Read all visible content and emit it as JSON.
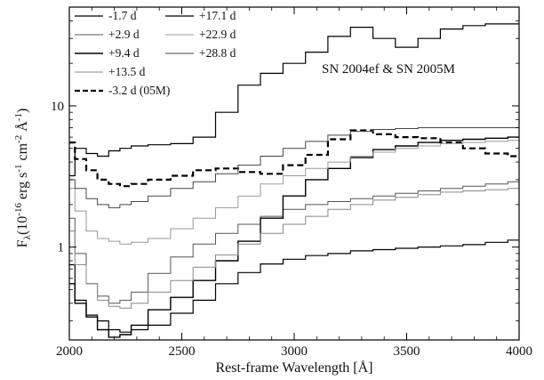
{
  "chart_data": {
    "type": "line",
    "title": "",
    "annotation": "SN 2004ef & SN 2005M",
    "xlabel": "Rest-frame Wavelength [Å]",
    "ylabel": "F_λ (10^-16 erg s^-1 cm^-2 Å^-1)",
    "ylabel_parts": {
      "F": "F",
      "lambda_sub": "λ",
      "unit": "(10",
      "exp1": "-16",
      "erg": " erg s",
      "exp2": "-1",
      "cm": " cm",
      "exp3": "-2",
      "ang": " Å",
      "exp4": "-1",
      "close": ")"
    },
    "xlim": [
      2000,
      4000
    ],
    "ylim": [
      0.22,
      50
    ],
    "yscale": "log",
    "grid": false,
    "legend_position": "top-left",
    "x_ticks": [
      "2000",
      "2500",
      "3000",
      "3500",
      "4000"
    ],
    "x_tick_values": [
      2000,
      2500,
      3000,
      3500,
      4000
    ],
    "y_ticks": [
      "1",
      "10"
    ],
    "y_tick_values": [
      1,
      10
    ],
    "series": [
      {
        "name": "-1.7 d",
        "color": "#000000",
        "style": "solid",
        "width": 1.2,
        "x": [
          2000,
          2050,
          2100,
          2150,
          2200,
          2250,
          2300,
          2400,
          2500,
          2600,
          2700,
          2800,
          2900,
          3000,
          3100,
          3200,
          3300,
          3400,
          3500,
          3600,
          3700,
          3800,
          3900,
          4000
        ],
        "y": [
          0.75,
          0.42,
          0.33,
          0.3,
          0.26,
          0.25,
          0.26,
          0.28,
          0.34,
          0.42,
          0.55,
          0.66,
          0.76,
          0.82,
          0.87,
          0.9,
          0.94,
          0.96,
          0.98,
          1.0,
          1.02,
          1.04,
          1.08,
          1.12
        ]
      },
      {
        "name": "+2.9 d",
        "color": "#555555",
        "style": "solid",
        "width": 1.0,
        "x": [
          2000,
          2050,
          2100,
          2150,
          2200,
          2250,
          2300,
          2400,
          2500,
          2600,
          2700,
          2800,
          2900,
          3000,
          3100,
          3200,
          3300,
          3400,
          3500,
          3600,
          3700,
          3800,
          3900,
          4000
        ],
        "y": [
          1.6,
          0.9,
          0.55,
          0.45,
          0.4,
          0.42,
          0.48,
          0.65,
          0.85,
          1.05,
          1.25,
          1.45,
          1.65,
          1.85,
          2.0,
          2.1,
          2.2,
          2.3,
          2.4,
          2.5,
          2.6,
          2.7,
          2.8,
          2.9
        ]
      },
      {
        "name": "+9.4 d",
        "color": "#000000",
        "style": "solid",
        "width": 1.4,
        "x": [
          2000,
          2050,
          2100,
          2150,
          2200,
          2250,
          2300,
          2400,
          2500,
          2600,
          2700,
          2800,
          2900,
          3000,
          3100,
          3200,
          3300,
          3400,
          3500,
          3600,
          3700,
          3800,
          3900,
          4000
        ],
        "y": [
          0.55,
          0.4,
          0.32,
          0.26,
          0.23,
          0.24,
          0.28,
          0.36,
          0.44,
          0.58,
          0.8,
          1.1,
          1.6,
          2.3,
          3.0,
          3.6,
          4.3,
          4.9,
          5.2,
          5.5,
          5.7,
          5.8,
          5.9,
          6.0
        ]
      },
      {
        "name": "+13.5 d",
        "color": "#888888",
        "style": "solid",
        "width": 1.0,
        "x": [
          2000,
          2050,
          2100,
          2150,
          2200,
          2250,
          2300,
          2400,
          2500,
          2600,
          2700,
          2800,
          2900,
          3000,
          3100,
          3200,
          3300,
          3400,
          3500,
          3600,
          3700,
          3800,
          3900,
          4000
        ],
        "y": [
          1.3,
          0.75,
          0.55,
          0.42,
          0.38,
          0.37,
          0.4,
          0.48,
          0.58,
          0.72,
          0.88,
          1.05,
          1.25,
          1.45,
          1.65,
          1.85,
          2.0,
          2.15,
          2.25,
          2.35,
          2.45,
          2.5,
          2.55,
          2.6
        ]
      },
      {
        "name": "-3.2 d (05M)",
        "color": "#000000",
        "style": "dashed",
        "width": 2.2,
        "x": [
          2000,
          2050,
          2100,
          2150,
          2200,
          2250,
          2300,
          2400,
          2500,
          2600,
          2700,
          2800,
          2900,
          3000,
          3100,
          3200,
          3300,
          3400,
          3500,
          3600,
          3700,
          3800,
          3900,
          4000
        ],
        "y": [
          5.5,
          4.2,
          3.5,
          3.0,
          2.8,
          2.7,
          2.8,
          3.0,
          3.2,
          3.5,
          3.6,
          3.4,
          3.3,
          3.8,
          4.5,
          5.8,
          6.7,
          6.3,
          6.0,
          5.9,
          5.5,
          5.0,
          4.6,
          4.4
        ]
      },
      {
        "name": "+17.1 d",
        "color": "#000000",
        "style": "solid",
        "width": 1.2,
        "x": [
          2000,
          2050,
          2100,
          2150,
          2200,
          2250,
          2300,
          2400,
          2500,
          2600,
          2700,
          2800,
          2900,
          3000,
          3100,
          3200,
          3300,
          3400,
          3500,
          3600,
          3700,
          3800,
          3900,
          4000
        ],
        "y": [
          3.2,
          5.0,
          4.6,
          4.4,
          4.8,
          5.0,
          5.2,
          5.3,
          5.4,
          6.0,
          9.0,
          14.0,
          17.0,
          20.0,
          24.0,
          31.0,
          36.0,
          30.0,
          26.0,
          30.0,
          35.0,
          37.0,
          38.0,
          38.0
        ]
      },
      {
        "name": "+22.9 d",
        "color": "#999999",
        "style": "solid",
        "width": 1.0,
        "x": [
          2000,
          2050,
          2100,
          2150,
          2200,
          2250,
          2300,
          2400,
          2500,
          2600,
          2700,
          2800,
          2900,
          3000,
          3100,
          3200,
          3300,
          3400,
          3500,
          3600,
          3700,
          3800,
          3900,
          4000
        ],
        "y": [
          2.6,
          1.8,
          1.3,
          1.15,
          1.1,
          1.05,
          1.08,
          1.15,
          1.35,
          1.6,
          1.9,
          2.3,
          2.8,
          3.2,
          3.6,
          4.0,
          4.4,
          4.7,
          5.0,
          5.2,
          5.4,
          5.5,
          5.6,
          5.7
        ]
      },
      {
        "name": "+28.8 d",
        "color": "#444444",
        "style": "solid",
        "width": 1.0,
        "x": [
          2000,
          2050,
          2100,
          2150,
          2200,
          2250,
          2300,
          2400,
          2500,
          2600,
          2700,
          2800,
          2900,
          3000,
          3100,
          3200,
          3300,
          3400,
          3500,
          3600,
          3700,
          3800,
          3900,
          4000
        ],
        "y": [
          3.0,
          2.6,
          2.2,
          2.0,
          1.9,
          2.0,
          2.1,
          2.3,
          2.6,
          2.9,
          3.3,
          3.8,
          4.4,
          5.0,
          5.6,
          6.2,
          6.6,
          6.8,
          6.9,
          7.0,
          7.0,
          7.0,
          7.0,
          7.0
        ]
      }
    ]
  }
}
